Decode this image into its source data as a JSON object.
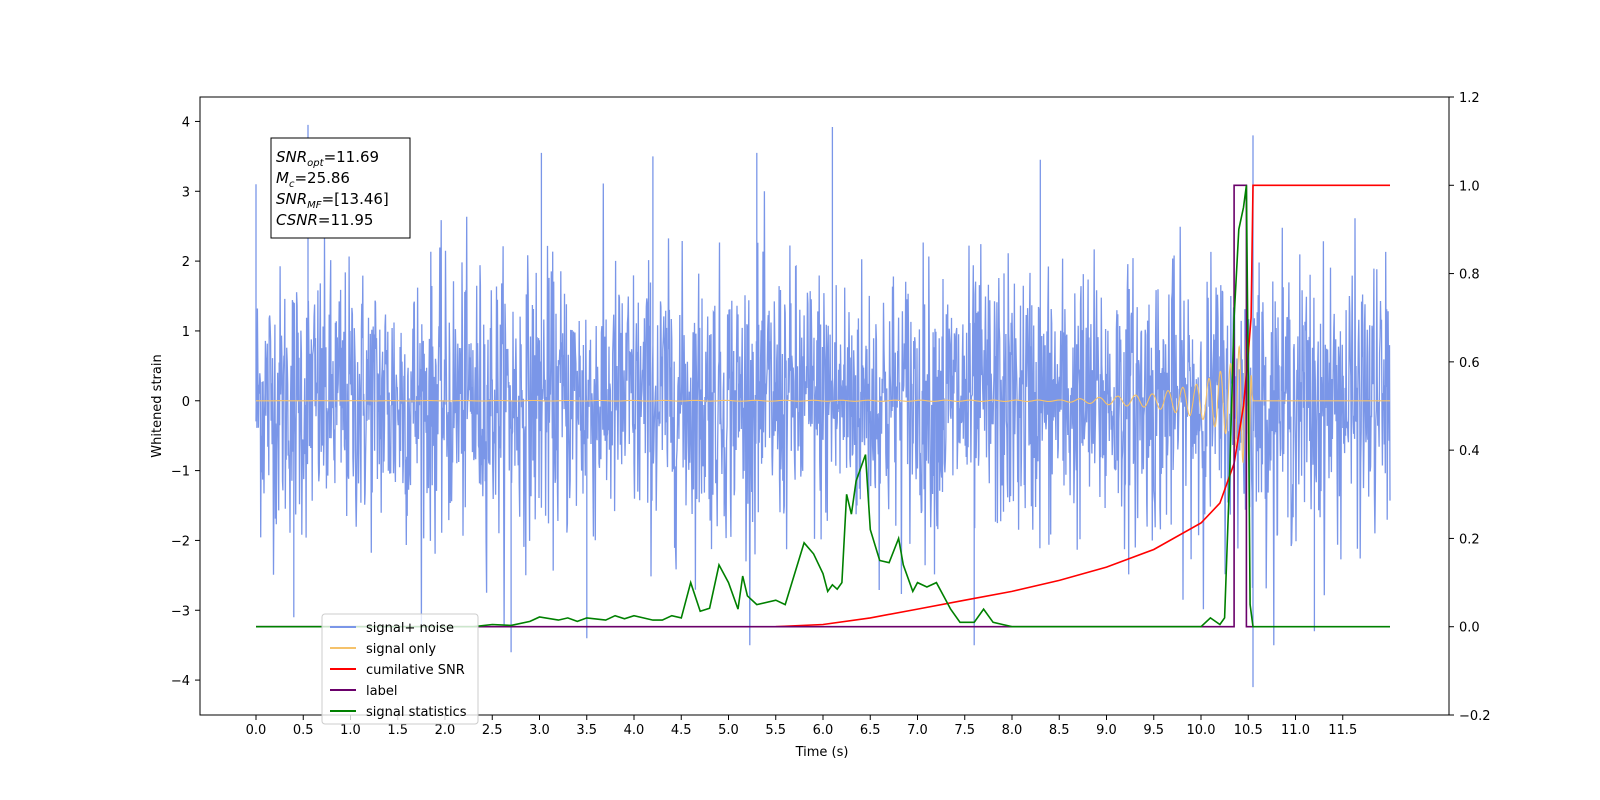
{
  "chart_data": {
    "type": "line",
    "xlabel": "Time (s)",
    "ylabel": "Whitened strain",
    "xlim": [
      -0.6,
      12.6
    ],
    "ylim": [
      -4.5,
      4.35
    ],
    "ylim_right": [
      -0.2,
      1.2
    ],
    "x_ticks": [
      "0.0",
      "0.5",
      "1.0",
      "1.5",
      "2.0",
      "2.5",
      "3.0",
      "3.5",
      "4.0",
      "4.5",
      "5.0",
      "5.5",
      "6.0",
      "6.5",
      "7.0",
      "7.5",
      "8.0",
      "8.5",
      "9.0",
      "9.5",
      "10.0",
      "10.5",
      "11.0",
      "11.5"
    ],
    "y_ticks": [
      "4",
      "3",
      "2",
      "1",
      "0",
      "−1",
      "−2",
      "−3",
      "−4"
    ],
    "y_ticks_right": [
      "1.2",
      "1.0",
      "0.8",
      "0.6",
      "0.4",
      "0.2",
      "0.0",
      "−0.2"
    ],
    "annotation": {
      "lines": [
        {
          "base": "SNR",
          "sub": "opt",
          "value": "=11.69"
        },
        {
          "base": "M",
          "sub": "c",
          "value": "=25.86"
        },
        {
          "base": "SNR",
          "sub": "MF",
          "value": "=[13.46]"
        },
        {
          "base": "CSNR",
          "sub": "",
          "value": "=11.95"
        }
      ]
    },
    "legend": {
      "placement": "lower-left",
      "entries": [
        {
          "label": "signal+ noise",
          "color": "#7a96e8"
        },
        {
          "label": "signal only",
          "color": "#f5c26b"
        },
        {
          "label": "cumilative SNR",
          "color": "#ff0000"
        },
        {
          "label": "label",
          "color": "#6a006a"
        },
        {
          "label": "signal statistics",
          "color": "#008000"
        }
      ]
    },
    "series": [
      {
        "name": "signal+ noise",
        "axis": "left",
        "color": "#7a96e8",
        "x_range": [
          0.0,
          12.0
        ],
        "envelope_std": 0.95,
        "spikes": [
          [
            0.0,
            3.1
          ],
          [
            0.55,
            3.95
          ],
          [
            6.1,
            3.92
          ],
          [
            3.02,
            3.55
          ],
          [
            10.55,
            3.8
          ],
          [
            10.55,
            -4.1
          ],
          [
            2.7,
            -3.6
          ],
          [
            7.6,
            -3.5
          ],
          [
            11.2,
            -3.3
          ],
          [
            0.4,
            -3.1
          ],
          [
            3.5,
            -3.4
          ],
          [
            5.3,
            3.55
          ],
          [
            4.2,
            3.5
          ],
          [
            8.3,
            3.45
          ]
        ]
      },
      {
        "name": "signal only",
        "axis": "left",
        "color": "#f5c26b",
        "x": [
          0.0,
          8.5,
          9.5,
          10.0,
          10.3,
          10.45,
          10.5,
          10.55,
          12.0
        ],
        "amplitude": [
          0.0,
          0.01,
          0.1,
          0.25,
          0.5,
          0.9,
          1.0,
          0.0,
          0.0
        ]
      },
      {
        "name": "cumilative SNR",
        "axis": "right",
        "color": "#ff0000",
        "x": [
          5.5,
          6.0,
          6.5,
          7.0,
          7.5,
          8.0,
          8.5,
          9.0,
          9.5,
          10.0,
          10.2,
          10.35,
          10.45,
          10.5,
          10.53,
          10.55,
          12.0
        ],
        "y": [
          0.0,
          0.005,
          0.02,
          0.04,
          0.06,
          0.08,
          0.105,
          0.135,
          0.175,
          0.235,
          0.28,
          0.37,
          0.5,
          0.62,
          0.7,
          1.0,
          1.0
        ]
      },
      {
        "name": "label",
        "axis": "right",
        "color": "#6a006a",
        "x": [
          0.0,
          10.35,
          10.35,
          10.48,
          10.48,
          10.55
        ],
        "y": [
          0.0,
          0.0,
          1.0,
          1.0,
          0.0,
          0.0
        ]
      },
      {
        "name": "signal statistics",
        "axis": "right",
        "color": "#008000",
        "x": [
          0.0,
          2.3,
          2.5,
          2.7,
          2.9,
          3.0,
          3.2,
          3.3,
          3.4,
          3.5,
          3.7,
          3.8,
          3.9,
          4.0,
          4.2,
          4.3,
          4.4,
          4.5,
          4.6,
          4.7,
          4.8,
          4.9,
          5.0,
          5.1,
          5.15,
          5.2,
          5.3,
          5.5,
          5.6,
          5.8,
          5.9,
          6.0,
          6.05,
          6.1,
          6.15,
          6.2,
          6.25,
          6.3,
          6.35,
          6.45,
          6.5,
          6.6,
          6.7,
          6.8,
          6.85,
          6.95,
          7.0,
          7.1,
          7.2,
          7.3,
          7.35,
          7.45,
          7.6,
          7.7,
          7.8,
          7.9,
          8.0,
          8.3,
          9.0,
          10.0,
          10.1,
          10.2,
          10.25,
          10.3,
          10.35,
          10.4,
          10.45,
          10.48,
          10.5,
          10.52,
          10.55,
          10.6,
          12.0
        ],
        "y": [
          0.0,
          0.0,
          0.005,
          0.003,
          0.012,
          0.022,
          0.015,
          0.02,
          0.012,
          0.02,
          0.015,
          0.025,
          0.018,
          0.025,
          0.015,
          0.015,
          0.025,
          0.02,
          0.1,
          0.035,
          0.042,
          0.14,
          0.1,
          0.04,
          0.115,
          0.07,
          0.05,
          0.06,
          0.05,
          0.19,
          0.165,
          0.12,
          0.08,
          0.095,
          0.085,
          0.1,
          0.3,
          0.255,
          0.33,
          0.39,
          0.22,
          0.15,
          0.145,
          0.2,
          0.14,
          0.08,
          0.1,
          0.09,
          0.1,
          0.06,
          0.04,
          0.01,
          0.01,
          0.04,
          0.01,
          0.005,
          0.0,
          0.0,
          0.0,
          0.0,
          0.02,
          0.005,
          0.02,
          0.32,
          0.7,
          0.9,
          0.95,
          1.0,
          0.55,
          0.05,
          0.0,
          0.0,
          0.0
        ]
      }
    ]
  }
}
